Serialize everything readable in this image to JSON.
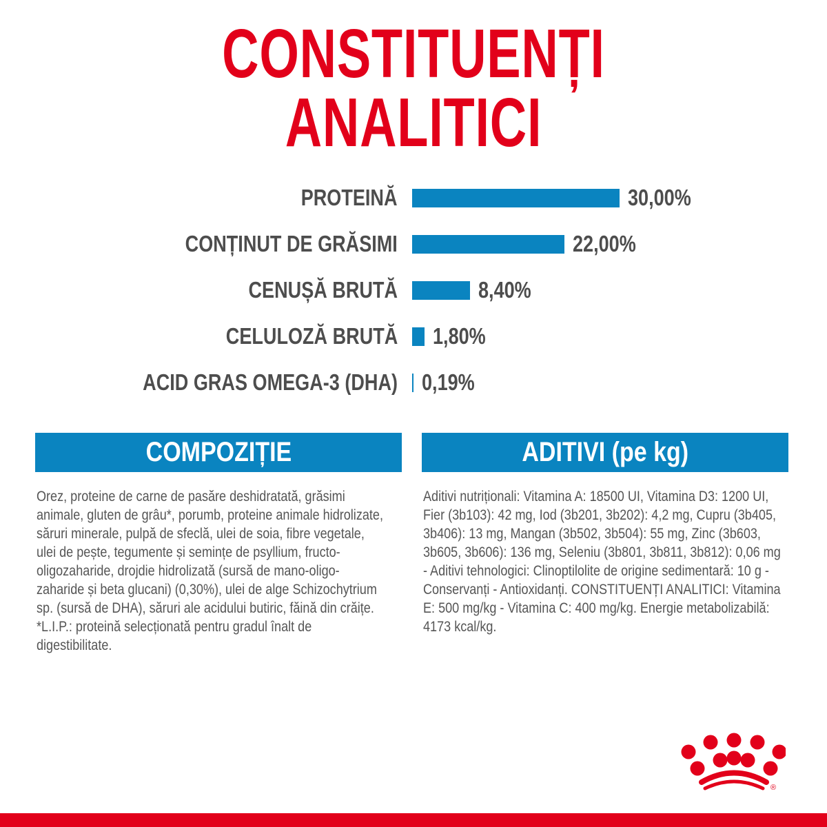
{
  "title": "CONSTITUENȚI ANALITICI",
  "colors": {
    "title": "#e2001a",
    "bar": "#0a84c0",
    "text": "#4d4d4d",
    "brand_red": "#e2001a"
  },
  "chart_data": {
    "type": "bar",
    "orientation": "horizontal",
    "categories": [
      "PROTEINĂ",
      "CONȚINUT DE GRĂSIMI",
      "CENUȘĂ BRUTĂ",
      "CELULOZĂ BRUTĂ",
      "ACID GRAS OMEGA-3 (DHA)"
    ],
    "values": [
      30.0,
      22.0,
      8.4,
      1.8,
      0.19
    ],
    "value_labels": [
      "30,00%",
      "22,00%",
      "8,40%",
      "1,80%",
      "0,19%"
    ],
    "unit": "%",
    "grid": false,
    "xlim": [
      0,
      30
    ]
  },
  "composition": {
    "header": "COMPOZIȚIE",
    "text": "Orez, proteine de carne de pasăre deshidratată, grăsimi animale, gluten de grâu*, porumb, proteine animale hidrolizate, săruri minerale, pulpă de sfeclă, ulei de soia, fibre vegetale, ulei de pește, tegumente și semințe de psyllium, fructo-oligozaharide, drojdie hidrolizată (sursă de mano-oligo-zaharide și beta glucani) (0,30%), ulei de alge Schizochytrium sp. (sursă de DHA), săruri ale acidului butiric, făină din crăițe.",
    "footnote": "*L.I.P.: proteină selecționată pentru gradul înalt de digestibilitate."
  },
  "additives": {
    "header": "ADITIVI (pe kg)",
    "text": "Aditivi nutriționali: Vitamina A: 18500 UI, Vitamina D3: 1200 UI, Fier (3b103): 42 mg, Iod (3b201, 3b202): 4,2 mg, Cupru (3b405, 3b406): 13 mg, Mangan (3b502, 3b504): 55 mg, Zinc (3b603, 3b605, 3b606): 136 mg, Seleniu (3b801, 3b811, 3b812): 0,06 mg - Aditivi tehnologici: Clinoptilolite de origine sedimentară: 10 g - Conservanți - Antioxidanți. CONSTITUENȚI ANALITICI: Vitamina E: 500 mg/kg - Vitamina C: 400 mg/kg. Energie metabolizabilă: 4173 kcal/kg."
  },
  "logo": {
    "name": "crown-logo",
    "mark": "®"
  }
}
